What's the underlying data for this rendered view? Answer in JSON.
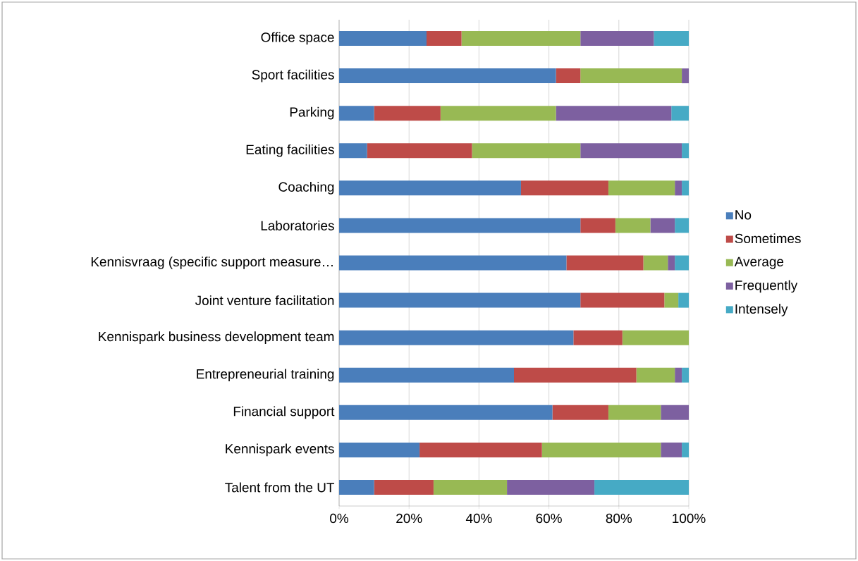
{
  "chart_data": {
    "type": "bar",
    "orientation": "horizontal",
    "stacked": true,
    "categories": [
      "Office space",
      "Sport facilities",
      "Parking",
      "Eating facilities",
      "Coaching",
      "Laboratories",
      "Kennisvraag (specific support measure…",
      "Joint venture facilitation",
      "Kennispark business development team",
      "Entrepreneurial training",
      "Financial support",
      "Kennispark events",
      "Talent from the UT"
    ],
    "series": [
      {
        "name": "No",
        "color": "#4a7ebb",
        "values": [
          25,
          62,
          10,
          8,
          52,
          69,
          65,
          69,
          67,
          50,
          61,
          23,
          10
        ]
      },
      {
        "name": "Sometimes",
        "color": "#be4b48",
        "values": [
          10,
          7,
          19,
          30,
          25,
          10,
          22,
          24,
          14,
          35,
          16,
          35,
          17
        ]
      },
      {
        "name": "Average",
        "color": "#98b954",
        "values": [
          34,
          29,
          33,
          31,
          19,
          10,
          7,
          4,
          19,
          11,
          15,
          34,
          21
        ]
      },
      {
        "name": "Frequently",
        "color": "#7d60a0",
        "values": [
          21,
          2,
          33,
          29,
          2,
          7,
          2,
          0,
          0,
          2,
          8,
          6,
          25
        ]
      },
      {
        "name": "Intensely",
        "color": "#46aac5",
        "values": [
          10,
          0,
          5,
          2,
          2,
          4,
          4,
          3,
          0,
          2,
          0,
          2,
          27
        ]
      }
    ],
    "xlim": [
      0,
      100
    ],
    "xticks": [
      {
        "value": 0,
        "label": "0%"
      },
      {
        "value": 20,
        "label": "20%"
      },
      {
        "value": 40,
        "label": "40%"
      },
      {
        "value": 60,
        "label": "60%"
      },
      {
        "value": 80,
        "label": "80%"
      },
      {
        "value": 100,
        "label": "100%"
      }
    ],
    "grid": "x",
    "legend": "right"
  }
}
